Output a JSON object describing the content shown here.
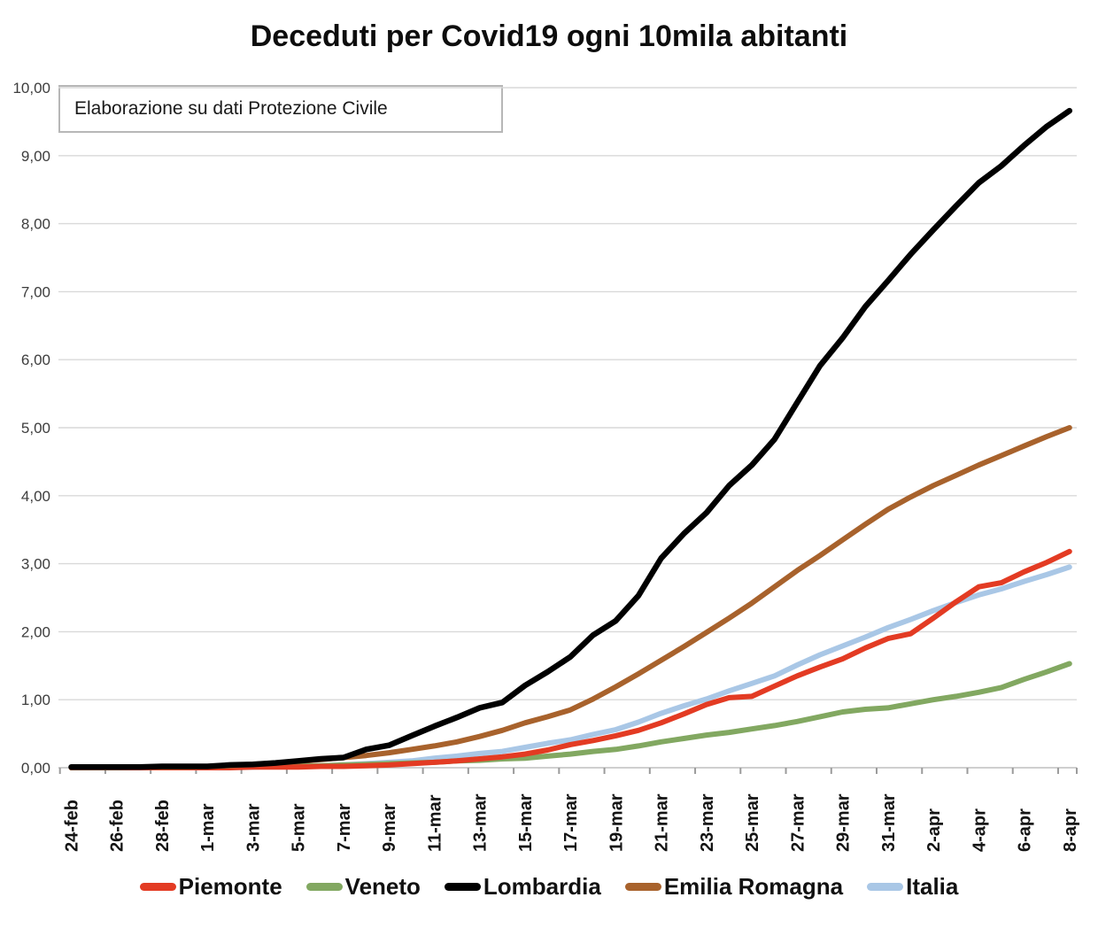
{
  "title": "Deceduti per Covid19 ogni 10mila abitanti",
  "annotation": "Elaborazione su dati Protezione Civile",
  "chart_data": {
    "type": "line",
    "title": "Deceduti per Covid19 ogni 10mila abitanti",
    "note": "Elaborazione su dati Protezione Civile",
    "ylabel": "",
    "xlabel": "",
    "ylim": [
      0,
      10
    ],
    "grid": "horizontal",
    "legend_position": "bottom",
    "grid_color": "#d9d9d9",
    "axis_color": "#bfbfbf",
    "tick_color": "#9b9b9b",
    "y_tick_labels": [
      "0,00",
      "1,00",
      "2,00",
      "3,00",
      "4,00",
      "5,00",
      "6,00",
      "7,00",
      "8,00",
      "9,00",
      "10,00"
    ],
    "x_tick_labels": [
      "24-feb",
      "26-feb",
      "28-feb",
      "1-mar",
      "3-mar",
      "5-mar",
      "7-mar",
      "9-mar",
      "11-mar",
      "13-mar",
      "15-mar",
      "17-mar",
      "19-mar",
      "21-mar",
      "23-mar",
      "25-mar",
      "27-mar",
      "29-mar",
      "31-mar",
      "2-apr",
      "4-apr",
      "6-apr",
      "8-apr"
    ],
    "dates": [
      "24-feb",
      "25-feb",
      "26-feb",
      "27-feb",
      "28-feb",
      "29-feb",
      "1-mar",
      "2-mar",
      "3-mar",
      "4-mar",
      "5-mar",
      "6-mar",
      "7-mar",
      "8-mar",
      "9-mar",
      "10-mar",
      "11-mar",
      "12-mar",
      "13-mar",
      "14-mar",
      "15-mar",
      "16-mar",
      "17-mar",
      "18-mar",
      "19-mar",
      "20-mar",
      "21-mar",
      "22-mar",
      "23-mar",
      "24-mar",
      "25-mar",
      "26-mar",
      "27-mar",
      "28-mar",
      "29-mar",
      "30-mar",
      "31-mar",
      "1-apr",
      "2-apr",
      "3-apr",
      "4-apr",
      "5-apr",
      "6-apr",
      "7-apr",
      "8-apr"
    ],
    "series": [
      {
        "name": "Piemonte",
        "color": "#e33b23",
        "values": [
          0.0,
          0.0,
          0.0,
          0.0,
          0.0,
          0.0,
          0.0,
          0.0,
          0.01,
          0.01,
          0.01,
          0.02,
          0.02,
          0.03,
          0.04,
          0.06,
          0.08,
          0.1,
          0.13,
          0.16,
          0.2,
          0.26,
          0.34,
          0.4,
          0.47,
          0.55,
          0.66,
          0.79,
          0.93,
          1.03,
          1.05,
          1.2,
          1.35,
          1.48,
          1.6,
          1.76,
          1.9,
          1.97,
          2.2,
          2.44,
          2.66,
          2.72,
          2.88,
          3.02,
          3.18
        ]
      },
      {
        "name": "Veneto",
        "color": "#82a861",
        "values": [
          0.0,
          0.0,
          0.01,
          0.01,
          0.01,
          0.01,
          0.01,
          0.01,
          0.02,
          0.02,
          0.02,
          0.03,
          0.04,
          0.05,
          0.06,
          0.07,
          0.08,
          0.1,
          0.11,
          0.13,
          0.14,
          0.17,
          0.2,
          0.24,
          0.27,
          0.32,
          0.38,
          0.43,
          0.48,
          0.52,
          0.57,
          0.62,
          0.68,
          0.75,
          0.82,
          0.86,
          0.88,
          0.94,
          1.0,
          1.05,
          1.11,
          1.18,
          1.3,
          1.41,
          1.53
        ]
      },
      {
        "name": "Lombardia",
        "color": "#000000",
        "values": [
          0.01,
          0.01,
          0.01,
          0.01,
          0.02,
          0.02,
          0.02,
          0.04,
          0.05,
          0.07,
          0.1,
          0.13,
          0.15,
          0.27,
          0.33,
          0.47,
          0.61,
          0.74,
          0.88,
          0.96,
          1.21,
          1.41,
          1.63,
          1.95,
          2.16,
          2.53,
          3.08,
          3.44,
          3.75,
          4.15,
          4.45,
          4.83,
          5.37,
          5.91,
          6.32,
          6.78,
          7.16,
          7.55,
          7.91,
          8.26,
          8.6,
          8.85,
          9.15,
          9.43,
          9.66
        ]
      },
      {
        "name": "Emilia Romagna",
        "color": "#a8622c",
        "values": [
          0.0,
          0.0,
          0.0,
          0.01,
          0.01,
          0.01,
          0.02,
          0.03,
          0.05,
          0.07,
          0.09,
          0.12,
          0.15,
          0.18,
          0.22,
          0.27,
          0.32,
          0.38,
          0.46,
          0.55,
          0.66,
          0.75,
          0.85,
          1.01,
          1.19,
          1.38,
          1.58,
          1.78,
          1.99,
          2.2,
          2.42,
          2.66,
          2.9,
          3.12,
          3.35,
          3.58,
          3.8,
          3.98,
          4.15,
          4.3,
          4.45,
          4.59,
          4.73,
          4.87,
          5.0
        ]
      },
      {
        "name": "Italia",
        "color": "#a9c7e6",
        "values": [
          0.0,
          0.0,
          0.0,
          0.0,
          0.0,
          0.0,
          0.01,
          0.01,
          0.01,
          0.02,
          0.02,
          0.03,
          0.04,
          0.06,
          0.08,
          0.1,
          0.14,
          0.17,
          0.21,
          0.24,
          0.3,
          0.36,
          0.41,
          0.49,
          0.56,
          0.67,
          0.8,
          0.91,
          1.01,
          1.13,
          1.24,
          1.35,
          1.51,
          1.66,
          1.79,
          1.92,
          2.06,
          2.18,
          2.31,
          2.43,
          2.54,
          2.63,
          2.74,
          2.84,
          2.95
        ]
      }
    ]
  }
}
